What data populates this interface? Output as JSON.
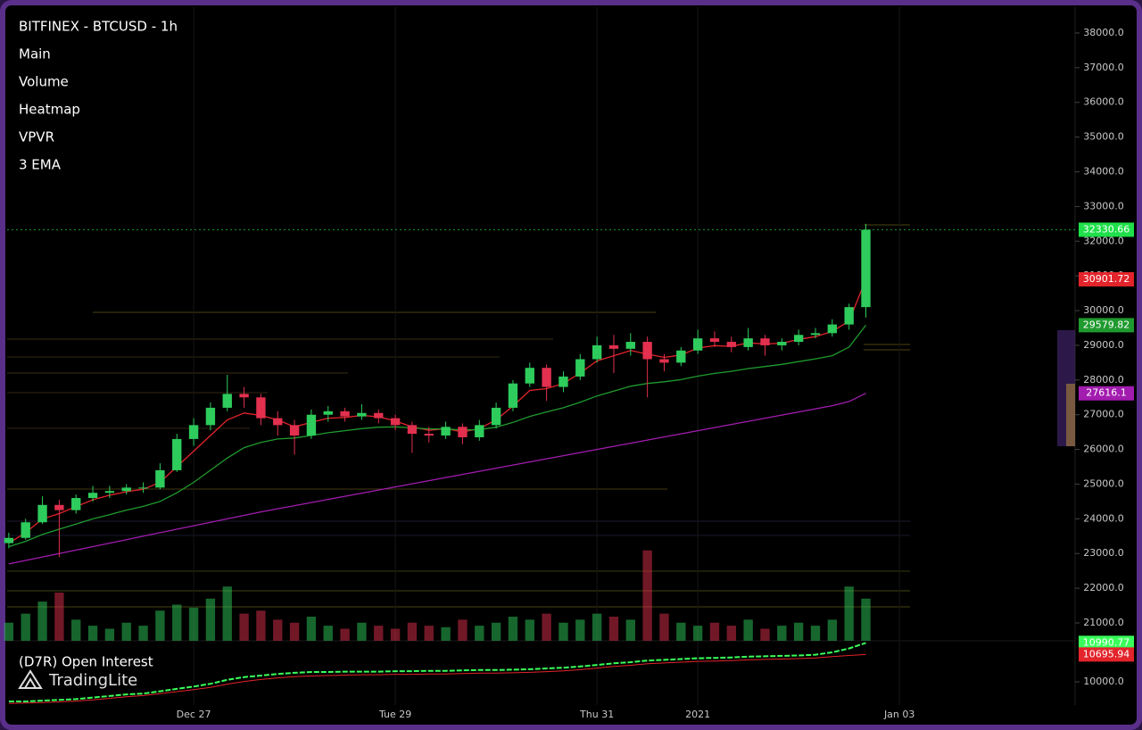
{
  "chart_data": {
    "type": "candlestick",
    "title": "BITFINEX - BTCUSD - 1h",
    "indicators": [
      "Main",
      "Volume",
      "Heatmap",
      "VPVR",
      "3 EMA"
    ],
    "up_color": "#2ecc5c",
    "down_color": "#e2304e",
    "x": [
      -44,
      -40,
      -36,
      -32,
      -28,
      -24,
      -20,
      -16,
      -12,
      -8,
      -4,
      0,
      4,
      8,
      12,
      16,
      20,
      24,
      28,
      32,
      36,
      40,
      44,
      48,
      52,
      56,
      60,
      64,
      68,
      72,
      76,
      80,
      84,
      88,
      92,
      96,
      100,
      104,
      108,
      112,
      116,
      120,
      124,
      128,
      132,
      136,
      140,
      144,
      148,
      152,
      156,
      160
    ],
    "xlim": [
      -44.4,
      209.8
    ],
    "xticks": [
      {
        "value": 0,
        "label": "Dec 27"
      },
      {
        "value": 48,
        "label": "Tue 29"
      },
      {
        "value": 96,
        "label": "Thu 31"
      },
      {
        "value": 120,
        "label": "2021"
      },
      {
        "value": 168,
        "label": "Jan 03"
      }
    ],
    "ylim": [
      20486,
      38745
    ],
    "yticks": [
      {
        "value": 21000,
        "label": "21000.0"
      },
      {
        "value": 22000,
        "label": "22000.0"
      },
      {
        "value": 23000,
        "label": "23000.0"
      },
      {
        "value": 24000,
        "label": "24000.0"
      },
      {
        "value": 25000,
        "label": "25000.0"
      },
      {
        "value": 26000,
        "label": "26000.0"
      },
      {
        "value": 27000,
        "label": "27000.0"
      },
      {
        "value": 28000,
        "label": "28000.0"
      },
      {
        "value": 29000,
        "label": "29000.0"
      },
      {
        "value": 30000,
        "label": "30000.0"
      },
      {
        "value": 31000,
        "label": "31000.0"
      },
      {
        "value": 32000,
        "label": "32000.0"
      },
      {
        "value": 33000,
        "label": "33000.0"
      },
      {
        "value": 34000,
        "label": "34000.0"
      },
      {
        "value": 35000,
        "label": "35000.0"
      },
      {
        "value": 36000,
        "label": "36000.0"
      },
      {
        "value": 37000,
        "label": "37000.0"
      },
      {
        "value": 38000,
        "label": "38000.0"
      }
    ],
    "ohlc": [
      [
        23300,
        23600,
        23150,
        23450
      ],
      [
        23450,
        24000,
        23400,
        23900
      ],
      [
        23900,
        24650,
        23850,
        24400
      ],
      [
        24400,
        24550,
        22900,
        24250
      ],
      [
        24250,
        24700,
        24150,
        24600
      ],
      [
        24600,
        24950,
        24500,
        24750
      ],
      [
        24750,
        24950,
        24600,
        24800
      ],
      [
        24800,
        25000,
        24700,
        24900
      ],
      [
        24900,
        25050,
        24750,
        24900
      ],
      [
        24900,
        25600,
        24850,
        25400
      ],
      [
        25400,
        26450,
        25350,
        26300
      ],
      [
        26300,
        26900,
        26100,
        26700
      ],
      [
        26700,
        27350,
        26550,
        27200
      ],
      [
        27200,
        28150,
        27100,
        27600
      ],
      [
        27600,
        27800,
        27200,
        27500
      ],
      [
        27500,
        27600,
        26700,
        26900
      ],
      [
        26900,
        27100,
        26400,
        26700
      ],
      [
        26700,
        26850,
        25850,
        26400
      ],
      [
        26400,
        27150,
        26300,
        27000
      ],
      [
        27000,
        27250,
        26800,
        27100
      ],
      [
        27100,
        27200,
        26800,
        26950
      ],
      [
        26950,
        27300,
        26850,
        27050
      ],
      [
        27050,
        27150,
        26750,
        26900
      ],
      [
        26900,
        27000,
        26550,
        26700
      ],
      [
        26700,
        26800,
        25900,
        26450
      ],
      [
        26450,
        26650,
        26200,
        26400
      ],
      [
        26400,
        26800,
        26300,
        26650
      ],
      [
        26650,
        26750,
        26150,
        26350
      ],
      [
        26350,
        26850,
        26250,
        26700
      ],
      [
        26700,
        27350,
        26600,
        27200
      ],
      [
        27200,
        28000,
        27100,
        27900
      ],
      [
        27900,
        28500,
        27800,
        28350
      ],
      [
        28350,
        28450,
        27400,
        27800
      ],
      [
        27800,
        28250,
        27650,
        28100
      ],
      [
        28100,
        28750,
        28000,
        28600
      ],
      [
        28600,
        29250,
        28500,
        29000
      ],
      [
        29000,
        29300,
        28200,
        28900
      ],
      [
        28900,
        29350,
        28700,
        29100
      ],
      [
        29100,
        29250,
        27500,
        28600
      ],
      [
        28600,
        28750,
        28250,
        28500
      ],
      [
        28500,
        28950,
        28400,
        28850
      ],
      [
        28850,
        29450,
        28750,
        29200
      ],
      [
        29200,
        29400,
        28950,
        29100
      ],
      [
        29100,
        29250,
        28800,
        28950
      ],
      [
        28950,
        29500,
        28850,
        29200
      ],
      [
        29200,
        29300,
        28700,
        29000
      ],
      [
        29000,
        29200,
        28850,
        29100
      ],
      [
        29100,
        29450,
        29000,
        29300
      ],
      [
        29300,
        29500,
        29200,
        29350
      ],
      [
        29350,
        29750,
        29250,
        29600
      ],
      [
        29600,
        30200,
        29450,
        30100
      ],
      [
        30100,
        32500,
        29800,
        32330.66
      ]
    ],
    "volume": [
      600,
      900,
      1300,
      1600,
      700,
      500,
      400,
      600,
      500,
      1000,
      1200,
      1100,
      1400,
      1800,
      900,
      1000,
      700,
      600,
      800,
      500,
      400,
      600,
      500,
      400,
      600,
      500,
      450,
      700,
      500,
      600,
      800,
      700,
      900,
      600,
      700,
      900,
      800,
      700,
      3000,
      900,
      600,
      500,
      600,
      500,
      700,
      400,
      500,
      600,
      500,
      700,
      1800,
      1400
    ],
    "volume_lim": [
      0,
      3200
    ],
    "current_color": "#1fe04a",
    "series": [
      {
        "color": "#e3242b",
        "values": [
          23300,
          23600,
          24000,
          24150,
          24350,
          24550,
          24680,
          24780,
          24850,
          25050,
          25500,
          25950,
          26400,
          26850,
          27050,
          26980,
          26850,
          26650,
          26780,
          26900,
          26920,
          26980,
          26940,
          26820,
          26650,
          26550,
          26600,
          26500,
          26600,
          26850,
          27250,
          27700,
          27750,
          27900,
          28200,
          28550,
          28700,
          28850,
          28750,
          28650,
          28720,
          28920,
          28990,
          28970,
          29070,
          29040,
          29060,
          29170,
          29250,
          29400,
          29700,
          30901.72
        ]
      },
      {
        "color": "#1f9a2e",
        "values": [
          23200,
          23350,
          23550,
          23700,
          23850,
          24000,
          24120,
          24250,
          24360,
          24500,
          24750,
          25050,
          25400,
          25750,
          26050,
          26200,
          26300,
          26330,
          26400,
          26480,
          26540,
          26600,
          26640,
          26650,
          26620,
          26590,
          26590,
          26560,
          26570,
          26640,
          26780,
          26950,
          27080,
          27200,
          27360,
          27540,
          27680,
          27820,
          27900,
          27950,
          28010,
          28110,
          28190,
          28250,
          28330,
          28390,
          28450,
          28530,
          28610,
          28700,
          28950,
          29579.82
        ]
      },
      {
        "color": "#a21caf",
        "values": [
          22700,
          22800,
          22900,
          23000,
          23100,
          23200,
          23300,
          23400,
          23500,
          23600,
          23700,
          23800,
          23900,
          24000,
          24100,
          24200,
          24290,
          24380,
          24470,
          24560,
          24650,
          24740,
          24830,
          24920,
          25010,
          25100,
          25190,
          25280,
          25370,
          25460,
          25550,
          25640,
          25730,
          25820,
          25910,
          26000,
          26090,
          26180,
          26270,
          26360,
          26450,
          26540,
          26630,
          26720,
          26810,
          26900,
          26990,
          27080,
          27170,
          27260,
          27380,
          27616.1
        ]
      }
    ],
    "oi_title": "(D7R) Open Interest",
    "oi_ylim": [
      9455,
      11045
    ],
    "oi_yticks": [
      {
        "value": 10000,
        "label": "10000.0"
      }
    ],
    "oi_series": [
      {
        "color": "#39ff5a",
        "values": [
          9500,
          9500,
          9520,
          9540,
          9560,
          9600,
          9640,
          9680,
          9700,
          9760,
          9820,
          9880,
          9950,
          10050,
          10120,
          10160,
          10200,
          10230,
          10250,
          10250,
          10260,
          10260,
          10260,
          10270,
          10270,
          10280,
          10280,
          10290,
          10300,
          10300,
          10310,
          10320,
          10340,
          10360,
          10390,
          10430,
          10470,
          10500,
          10540,
          10560,
          10580,
          10600,
          10610,
          10620,
          10640,
          10650,
          10660,
          10670,
          10690,
          10750,
          10850,
          10990.77
        ]
      },
      {
        "color": "#e3242b",
        "values": [
          9450,
          9460,
          9470,
          9490,
          9510,
          9540,
          9580,
          9620,
          9650,
          9700,
          9750,
          9800,
          9860,
          9940,
          10010,
          10060,
          10100,
          10130,
          10150,
          10160,
          10170,
          10180,
          10180,
          10190,
          10190,
          10200,
          10200,
          10210,
          10220,
          10220,
          10230,
          10240,
          10260,
          10280,
          10310,
          10350,
          10390,
          10420,
          10460,
          10480,
          10500,
          10520,
          10530,
          10540,
          10560,
          10570,
          10580,
          10590,
          10610,
          10640,
          10670,
          10695.94
        ]
      }
    ]
  },
  "watermark": "TradingLite"
}
